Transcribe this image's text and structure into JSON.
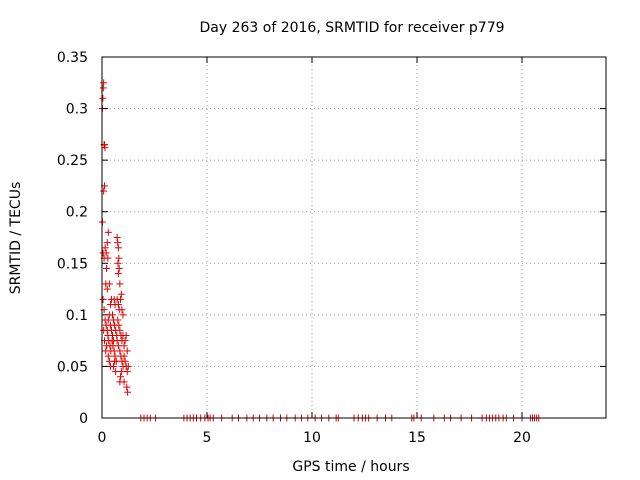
{
  "chart_data": {
    "type": "scatter",
    "title": "Day 263 of 2016, SRMTID for receiver p779",
    "xlabel": "GPS time / hours",
    "ylabel": "SRMTID / TECUs",
    "xlim": [
      0,
      24
    ],
    "ylim": [
      0,
      0.35
    ],
    "xticks": [
      0,
      5,
      10,
      15,
      20
    ],
    "xtick_labels": [
      "0",
      "5",
      "10",
      "15",
      "20"
    ],
    "yticks": [
      0,
      0.05,
      0.1,
      0.15,
      0.2,
      0.25,
      0.3,
      0.35
    ],
    "ytick_labels": [
      "0",
      "0.05",
      "0.1",
      "0.15",
      "0.2",
      "0.25",
      "0.3",
      "0.35"
    ],
    "grid": true,
    "marker": "+",
    "color": "#e00000",
    "series": [
      {
        "points": [
          [
            0.02,
            0.3
          ],
          [
            0.04,
            0.31
          ],
          [
            0.06,
            0.32
          ],
          [
            0.08,
            0.325
          ],
          [
            0.1,
            0.265
          ],
          [
            0.12,
            0.265
          ],
          [
            0.14,
            0.262
          ],
          [
            0.08,
            0.22
          ],
          [
            0.12,
            0.225
          ],
          [
            0.02,
            0.19
          ],
          [
            0.05,
            0.16
          ],
          [
            0.1,
            0.155
          ],
          [
            0.15,
            0.165
          ],
          [
            0.2,
            0.16
          ],
          [
            0.25,
            0.17
          ],
          [
            0.22,
            0.145
          ],
          [
            0.28,
            0.155
          ],
          [
            0.3,
            0.18
          ],
          [
            0.18,
            0.13
          ],
          [
            0.25,
            0.125
          ],
          [
            0.35,
            0.13
          ],
          [
            0.05,
            0.115
          ],
          [
            0.1,
            0.105
          ],
          [
            0.15,
            0.095
          ],
          [
            0.2,
            0.09
          ],
          [
            0.25,
            0.085
          ],
          [
            0.3,
            0.095
          ],
          [
            0.35,
            0.1
          ],
          [
            0.4,
            0.11
          ],
          [
            0.45,
            0.115
          ],
          [
            0.5,
            0.1
          ],
          [
            0.55,
            0.095
          ],
          [
            0.6,
            0.09
          ],
          [
            0.65,
            0.085
          ],
          [
            0.7,
            0.08
          ],
          [
            0.08,
            0.085
          ],
          [
            0.12,
            0.075
          ],
          [
            0.18,
            0.065
          ],
          [
            0.22,
            0.07
          ],
          [
            0.28,
            0.08
          ],
          [
            0.32,
            0.075
          ],
          [
            0.38,
            0.07
          ],
          [
            0.42,
            0.065
          ],
          [
            0.48,
            0.075
          ],
          [
            0.52,
            0.07
          ],
          [
            0.58,
            0.065
          ],
          [
            0.62,
            0.06
          ],
          [
            0.68,
            0.055
          ],
          [
            0.72,
            0.175
          ],
          [
            0.75,
            0.17
          ],
          [
            0.78,
            0.165
          ],
          [
            0.8,
            0.155
          ],
          [
            0.76,
            0.15
          ],
          [
            0.82,
            0.145
          ],
          [
            0.78,
            0.14
          ],
          [
            0.85,
            0.13
          ],
          [
            0.72,
            0.115
          ],
          [
            0.78,
            0.11
          ],
          [
            0.82,
            0.105
          ],
          [
            0.88,
            0.115
          ],
          [
            0.92,
            0.12
          ],
          [
            0.95,
            0.105
          ],
          [
            1.0,
            0.1
          ],
          [
            0.75,
            0.095
          ],
          [
            0.8,
            0.09
          ],
          [
            0.85,
            0.085
          ],
          [
            0.9,
            0.08
          ],
          [
            0.95,
            0.075
          ],
          [
            1.0,
            0.08
          ],
          [
            1.05,
            0.07
          ],
          [
            1.1,
            0.075
          ],
          [
            1.15,
            0.08
          ],
          [
            1.2,
            0.065
          ],
          [
            0.72,
            0.075
          ],
          [
            0.78,
            0.07
          ],
          [
            0.85,
            0.065
          ],
          [
            0.9,
            0.06
          ],
          [
            0.95,
            0.055
          ],
          [
            1.0,
            0.05
          ],
          [
            1.05,
            0.06
          ],
          [
            1.1,
            0.055
          ],
          [
            1.15,
            0.05
          ],
          [
            1.2,
            0.045
          ],
          [
            1.25,
            0.05
          ],
          [
            0.55,
            0.05
          ],
          [
            0.6,
            0.055
          ],
          [
            0.65,
            0.045
          ],
          [
            0.88,
            0.04
          ],
          [
            0.92,
            0.045
          ],
          [
            0.85,
            0.035
          ],
          [
            1.05,
            0.035
          ],
          [
            1.18,
            0.03
          ],
          [
            1.22,
            0.025
          ],
          [
            0.58,
            0.115
          ],
          [
            0.62,
            0.11
          ],
          [
            0.4,
            0.09
          ],
          [
            0.45,
            0.085
          ],
          [
            0.5,
            0.08
          ],
          [
            0.55,
            0.075
          ],
          [
            0.3,
            0.06
          ],
          [
            0.35,
            0.055
          ],
          [
            0.4,
            0.05
          ],
          [
            1.85,
            0
          ],
          [
            2.0,
            0
          ],
          [
            2.15,
            0
          ],
          [
            2.3,
            0
          ],
          [
            2.55,
            0
          ],
          [
            3.9,
            0
          ],
          [
            4.05,
            0
          ],
          [
            4.2,
            0
          ],
          [
            4.35,
            0
          ],
          [
            4.5,
            0
          ],
          [
            4.7,
            0
          ],
          [
            4.9,
            0
          ],
          [
            5.05,
            0
          ],
          [
            5.15,
            0
          ],
          [
            5.3,
            0
          ],
          [
            5.7,
            0
          ],
          [
            6.2,
            0
          ],
          [
            6.5,
            0
          ],
          [
            6.9,
            0
          ],
          [
            7.2,
            0
          ],
          [
            7.5,
            0
          ],
          [
            7.85,
            0
          ],
          [
            8.15,
            0
          ],
          [
            8.5,
            0
          ],
          [
            8.8,
            0
          ],
          [
            9.2,
            0
          ],
          [
            9.5,
            0
          ],
          [
            9.8,
            0
          ],
          [
            10.15,
            0
          ],
          [
            10.45,
            0
          ],
          [
            10.8,
            0
          ],
          [
            11.15,
            0
          ],
          [
            11.25,
            0
          ],
          [
            12.0,
            0
          ],
          [
            12.2,
            0
          ],
          [
            12.4,
            0
          ],
          [
            12.55,
            0
          ],
          [
            12.7,
            0
          ],
          [
            13.1,
            0
          ],
          [
            13.5,
            0
          ],
          [
            13.8,
            0
          ],
          [
            14.75,
            0
          ],
          [
            14.85,
            0
          ],
          [
            15.2,
            0
          ],
          [
            15.8,
            0
          ],
          [
            16.3,
            0
          ],
          [
            16.6,
            0
          ],
          [
            17.1,
            0
          ],
          [
            17.6,
            0
          ],
          [
            18.1,
            0
          ],
          [
            18.3,
            0
          ],
          [
            18.45,
            0
          ],
          [
            18.6,
            0
          ],
          [
            18.75,
            0
          ],
          [
            18.9,
            0
          ],
          [
            19.1,
            0
          ],
          [
            19.25,
            0
          ],
          [
            19.6,
            0
          ],
          [
            20.0,
            0
          ],
          [
            20.4,
            0
          ],
          [
            20.5,
            0
          ],
          [
            20.6,
            0
          ],
          [
            20.7,
            0
          ],
          [
            20.8,
            0
          ]
        ]
      }
    ]
  }
}
